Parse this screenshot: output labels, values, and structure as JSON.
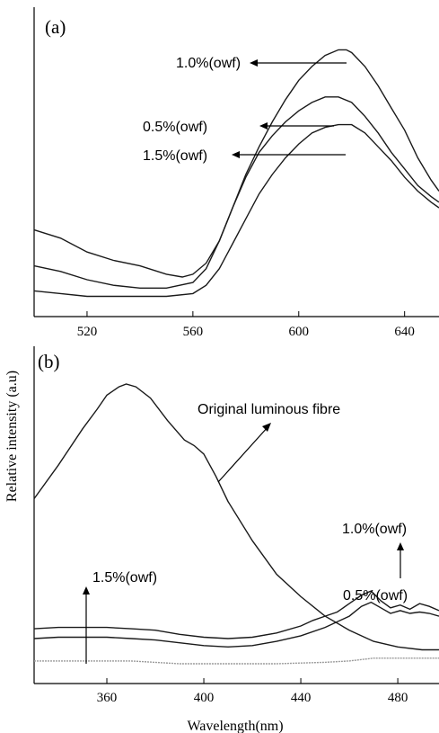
{
  "chart_data": [
    {
      "id": "a",
      "type": "line",
      "panel_label": "(a)",
      "x_ticks": [
        520,
        560,
        600,
        640
      ],
      "xlim": [
        500,
        653
      ],
      "ylim": [
        0,
        1
      ],
      "series": [
        {
          "name": "1.0%(owf)",
          "x": [
            500,
            510,
            520,
            530,
            540,
            550,
            556,
            560,
            565,
            570,
            575,
            580,
            585,
            590,
            595,
            600,
            605,
            610,
            615,
            618,
            620,
            625,
            630,
            635,
            640,
            645,
            650,
            653
          ],
          "y": [
            0.3,
            0.27,
            0.22,
            0.19,
            0.17,
            0.14,
            0.13,
            0.14,
            0.18,
            0.26,
            0.38,
            0.5,
            0.6,
            0.69,
            0.77,
            0.84,
            0.89,
            0.93,
            0.95,
            0.95,
            0.94,
            0.89,
            0.82,
            0.74,
            0.66,
            0.56,
            0.48,
            0.44
          ]
        },
        {
          "name": "0.5%(owf)",
          "x": [
            500,
            510,
            520,
            530,
            540,
            550,
            560,
            565,
            570,
            575,
            580,
            585,
            590,
            595,
            600,
            605,
            610,
            613,
            615,
            620,
            625,
            630,
            635,
            640,
            645,
            650,
            653
          ],
          "y": [
            0.17,
            0.15,
            0.12,
            0.1,
            0.09,
            0.09,
            0.11,
            0.16,
            0.26,
            0.38,
            0.49,
            0.58,
            0.64,
            0.69,
            0.73,
            0.76,
            0.78,
            0.78,
            0.78,
            0.76,
            0.71,
            0.65,
            0.58,
            0.52,
            0.46,
            0.42,
            0.4
          ]
        },
        {
          "name": "1.5%(owf)",
          "x": [
            500,
            510,
            520,
            530,
            540,
            550,
            560,
            565,
            570,
            575,
            580,
            585,
            590,
            595,
            600,
            605,
            610,
            615,
            618,
            620,
            625,
            630,
            635,
            640,
            645,
            650,
            653
          ],
          "y": [
            0.08,
            0.07,
            0.06,
            0.06,
            0.06,
            0.06,
            0.07,
            0.1,
            0.16,
            0.25,
            0.34,
            0.43,
            0.5,
            0.56,
            0.61,
            0.65,
            0.67,
            0.68,
            0.68,
            0.68,
            0.65,
            0.6,
            0.55,
            0.49,
            0.44,
            0.4,
            0.38
          ]
        }
      ],
      "annotations": [
        "1.0%(owf)",
        "0.5%(owf)",
        "1.5%(owf)"
      ]
    },
    {
      "id": "b",
      "type": "line",
      "panel_label": "(b)",
      "x_ticks": [
        360,
        400,
        440,
        480
      ],
      "xlim": [
        330,
        497
      ],
      "ylim": [
        0,
        1
      ],
      "series": [
        {
          "name": "Original luminous fibre",
          "x": [
            330,
            340,
            350,
            356,
            360,
            365,
            368,
            372,
            378,
            385,
            392,
            396,
            400,
            405,
            410,
            420,
            430,
            440,
            450,
            460,
            470,
            480,
            490,
            497
          ],
          "y": [
            0.59,
            0.71,
            0.84,
            0.91,
            0.96,
            0.99,
            1.0,
            0.99,
            0.95,
            0.87,
            0.8,
            0.78,
            0.75,
            0.67,
            0.58,
            0.44,
            0.32,
            0.24,
            0.17,
            0.12,
            0.08,
            0.06,
            0.05,
            0.05
          ]
        },
        {
          "name": "1.0%(owf)",
          "x": [
            330,
            340,
            350,
            360,
            370,
            380,
            390,
            400,
            410,
            420,
            430,
            440,
            445,
            450,
            455,
            460,
            465,
            469,
            473,
            477,
            481,
            485,
            489,
            493,
            497
          ],
          "y": [
            0.125,
            0.13,
            0.13,
            0.13,
            0.125,
            0.12,
            0.105,
            0.095,
            0.09,
            0.095,
            0.11,
            0.135,
            0.155,
            0.17,
            0.185,
            0.215,
            0.245,
            0.26,
            0.225,
            0.2,
            0.21,
            0.195,
            0.215,
            0.205,
            0.19
          ]
        },
        {
          "name": "0.5%(owf)",
          "x": [
            330,
            340,
            350,
            360,
            370,
            380,
            390,
            400,
            410,
            420,
            430,
            440,
            450,
            460,
            465,
            469,
            473,
            477,
            481,
            485,
            489,
            493,
            497
          ],
          "y": [
            0.09,
            0.095,
            0.095,
            0.095,
            0.09,
            0.085,
            0.075,
            0.065,
            0.06,
            0.065,
            0.08,
            0.1,
            0.13,
            0.17,
            0.205,
            0.22,
            0.2,
            0.18,
            0.19,
            0.18,
            0.185,
            0.18,
            0.17
          ]
        },
        {
          "name": "1.5%(owf)",
          "x": [
            330,
            350,
            370,
            390,
            410,
            430,
            450,
            460,
            470,
            480,
            490,
            497
          ],
          "y": [
            0.01,
            0.01,
            0.01,
            0.0,
            0.0,
            0.0,
            0.005,
            0.01,
            0.02,
            0.02,
            0.02,
            0.02
          ]
        }
      ],
      "annotations": [
        "Original luminous fibre",
        "1.0%(owf)",
        "0.5%(owf)",
        "1.5%(owf)"
      ]
    }
  ],
  "y_axis_title": "Relative intensity (a.u)",
  "x_axis_title": "Wavelength(nm)"
}
